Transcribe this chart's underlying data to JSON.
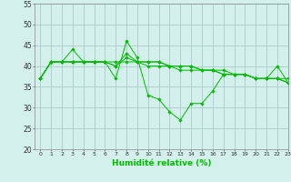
{
  "title": "",
  "xlabel": "Humidité relative (%)",
  "ylabel": "",
  "xlim": [
    -0.5,
    23
  ],
  "ylim": [
    20,
    55
  ],
  "yticks": [
    20,
    25,
    30,
    35,
    40,
    45,
    50,
    55
  ],
  "xticks": [
    0,
    1,
    2,
    3,
    4,
    5,
    6,
    7,
    8,
    9,
    10,
    11,
    12,
    13,
    14,
    15,
    16,
    17,
    18,
    19,
    20,
    21,
    22,
    23
  ],
  "bg_color": "#d4f0ec",
  "grid_color": "#aaccc8",
  "line_color": "#00bb00",
  "lines": [
    [
      37,
      41,
      41,
      44,
      41,
      41,
      41,
      37,
      46,
      42,
      33,
      32,
      29,
      27,
      31,
      31,
      34,
      38,
      38,
      38,
      37,
      37,
      40,
      36
    ],
    [
      37,
      41,
      41,
      41,
      41,
      41,
      41,
      40,
      43,
      41,
      40,
      40,
      40,
      39,
      39,
      39,
      39,
      39,
      38,
      38,
      37,
      37,
      37,
      37
    ],
    [
      37,
      41,
      41,
      41,
      41,
      41,
      41,
      40,
      42,
      41,
      41,
      41,
      40,
      40,
      40,
      39,
      39,
      38,
      38,
      38,
      37,
      37,
      37,
      36
    ],
    [
      37,
      41,
      41,
      41,
      41,
      41,
      41,
      41,
      41,
      41,
      41,
      41,
      40,
      40,
      40,
      39,
      39,
      38,
      38,
      38,
      37,
      37,
      37,
      36
    ]
  ]
}
